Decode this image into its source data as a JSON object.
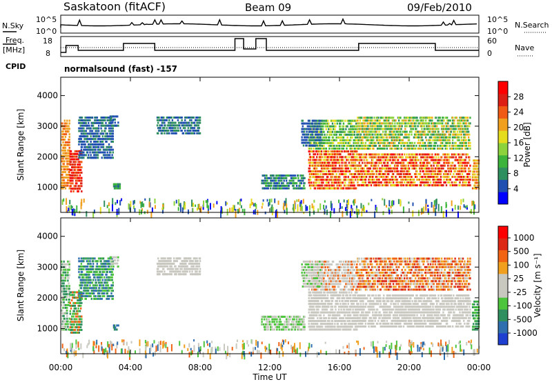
{
  "header": {
    "station": "Saskatoon (fitACF)",
    "beam": "Beam 09",
    "date": "09/Feb/2010"
  },
  "top_panels": {
    "nsky_label": "N.Sky",
    "nsky_ticks": [
      "10^5",
      "10^0"
    ],
    "nsearch_label": "N.Search",
    "nsearch_ticks": [
      "10^5",
      "10^0"
    ],
    "freq_label_1": "Freq.",
    "freq_label_2": "[MHz]",
    "freq_ticks": [
      "18",
      "8"
    ],
    "nave_label": "Nave",
    "nave_ticks": [
      "60",
      "0"
    ],
    "cpid_label": "CPID",
    "cpid_text": "normalsound (fast) -157"
  },
  "colors": {
    "power_scale": [
      "#0000ff",
      "#1f4fb0",
      "#2f8f5f",
      "#3cb43c",
      "#8cd23c",
      "#e6dc1e",
      "#f0a01e",
      "#f05a14",
      "#dc1e14",
      "#ff0000"
    ],
    "velocity_scale": [
      "#1f3fd0",
      "#2f6fb0",
      "#2f8f5f",
      "#4cc43c",
      "#c8c8c0",
      "#c8c8c0",
      "#f0a01e",
      "#f06414",
      "#dc2814",
      "#ff0000"
    ]
  },
  "chart_data": [
    {
      "type": "heatmap",
      "title": "Power",
      "ylabel": "Slant Range [km]",
      "xlabel": "",
      "x_ticks": [
        "00:00",
        "04:00",
        "08:00",
        "12:00",
        "16:00",
        "20:00",
        "00:00"
      ],
      "xlim_hours": [
        0,
        24
      ],
      "y_ticks": [
        1000,
        2000,
        3000,
        4000
      ],
      "ylim": [
        180,
        4600
      ],
      "colorbar_label": "Power [dB]",
      "colorbar_ticks": [
        4,
        8,
        12,
        16,
        20,
        24,
        28
      ]
    },
    {
      "type": "heatmap",
      "title": "Velocity",
      "ylabel": "Slant Range [km]",
      "xlabel": "Time UT",
      "x_ticks": [
        "00:00",
        "04:00",
        "08:00",
        "12:00",
        "16:00",
        "20:00",
        "00:00"
      ],
      "xlim_hours": [
        0,
        24
      ],
      "y_ticks": [
        1000,
        2000,
        3000,
        4000
      ],
      "ylim": [
        180,
        4600
      ],
      "colorbar_label": "Velocity [m s⁻¹]",
      "colorbar_ticks": [
        1000,
        500,
        100,
        25,
        -25,
        -100,
        -500,
        -1000
      ]
    }
  ]
}
